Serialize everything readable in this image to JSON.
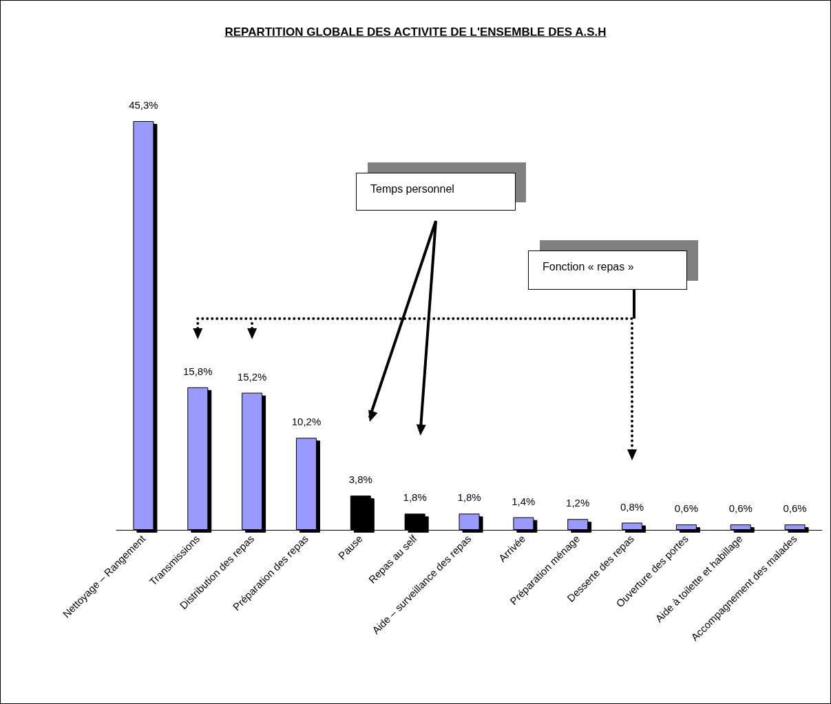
{
  "chart_data": {
    "type": "bar",
    "title": "REPARTITION GLOBALE DES ACTIVITE DE L'ENSEMBLE DES A.S.H",
    "categories": [
      "Nettoyage – Rangement",
      "Transmissions",
      "Distribution des repas",
      "Préparation des repas",
      "Pause",
      "Repas au self",
      "Aide – surveillance des repas",
      "Arrivée",
      "Préparation ménage",
      "Desserte des repas",
      "Ouverture des portes",
      "Aide à toilette et habillage",
      "Accompagnement des malades"
    ],
    "values": [
      45.3,
      15.8,
      15.2,
      10.2,
      3.8,
      1.8,
      1.8,
      1.4,
      1.2,
      0.8,
      0.6,
      0.6,
      0.6
    ],
    "value_labels": [
      "45,3%",
      "15,8%",
      "15,2%",
      "10,2%",
      "3,8%",
      "1,8%",
      "1,8%",
      "1,4%",
      "1,2%",
      "0,8%",
      "0,6%",
      "0,6%",
      "0,6%"
    ],
    "colors": [
      "#9999ff",
      "#9999ff",
      "#9999ff",
      "#9999ff",
      "#000000",
      "#000000",
      "#9999ff",
      "#9999ff",
      "#9999ff",
      "#9999ff",
      "#9999ff",
      "#9999ff",
      "#9999ff"
    ],
    "annotations": [
      "Temps personnel",
      "Fonction « repas »"
    ],
    "grid": false
  }
}
